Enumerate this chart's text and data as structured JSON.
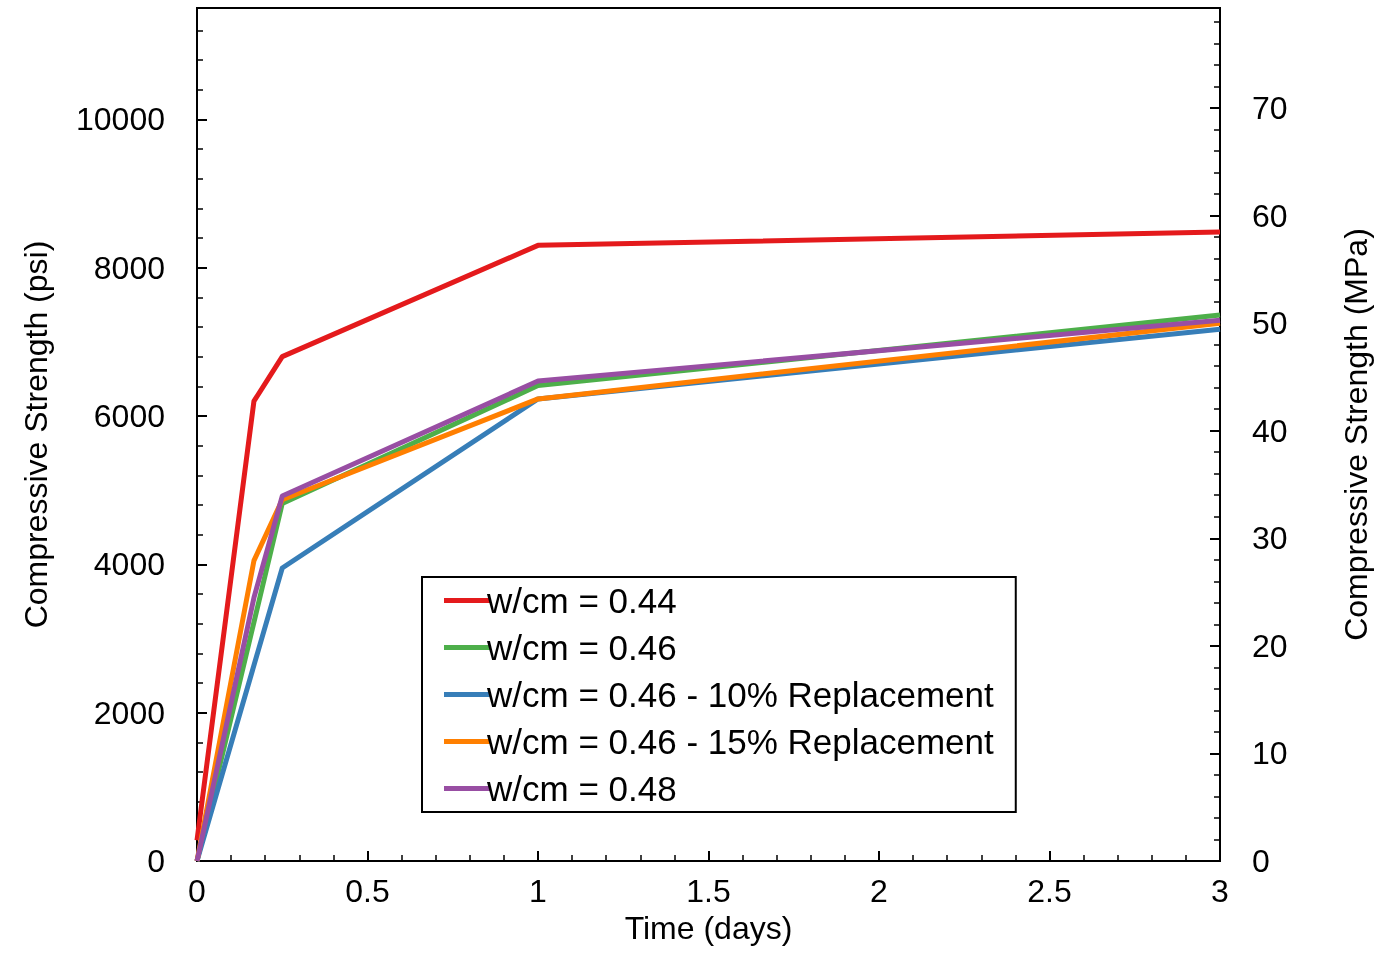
{
  "chart_data": {
    "type": "line",
    "xlabel": "Time (days)",
    "ylabel": "Compressive Strength (psi)",
    "y2label": "Compressive Strength (MPa)",
    "xlim": [
      0,
      3
    ],
    "xticks": [
      0,
      0.5,
      1,
      1.5,
      2,
      2.5,
      3
    ],
    "ylim": [
      0,
      11500
    ],
    "yticks": [
      0,
      2000,
      4000,
      6000,
      8000,
      10000
    ],
    "y2lim": [
      0,
      79.29
    ],
    "y2ticks": [
      0,
      10,
      20,
      30,
      40,
      50,
      60,
      70
    ],
    "grid": false,
    "legend": "bottom",
    "marker": "none",
    "line_style": "solid",
    "series": [
      {
        "name": "w/cm = 0.44",
        "color": "#e41a1c",
        "x": [
          0,
          0.167,
          0.25,
          1,
          3
        ],
        "values": [
          280,
          6200,
          6800,
          8300,
          8480
        ]
      },
      {
        "name": "w/cm = 0.46",
        "color": "#4daf4a",
        "x": [
          0,
          0.25,
          1,
          3
        ],
        "values": [
          0,
          4820,
          6410,
          7360
        ]
      },
      {
        "name": "w/cm = 0.46 - 10% Replacement",
        "color": "#377eb8",
        "x": [
          0,
          0.25,
          1,
          3
        ],
        "values": [
          0,
          3950,
          6230,
          7170
        ]
      },
      {
        "name": "w/cm = 0.46 - 15% Replacement",
        "color": "#ff7f00",
        "x": [
          0,
          0.167,
          0.25,
          1,
          3
        ],
        "values": [
          0,
          4050,
          4870,
          6230,
          7250
        ]
      },
      {
        "name": "w/cm = 0.48",
        "color": "#984ea3",
        "x": [
          0,
          0.167,
          0.25,
          1,
          3
        ],
        "values": [
          0,
          3550,
          4920,
          6470,
          7290
        ]
      }
    ]
  }
}
